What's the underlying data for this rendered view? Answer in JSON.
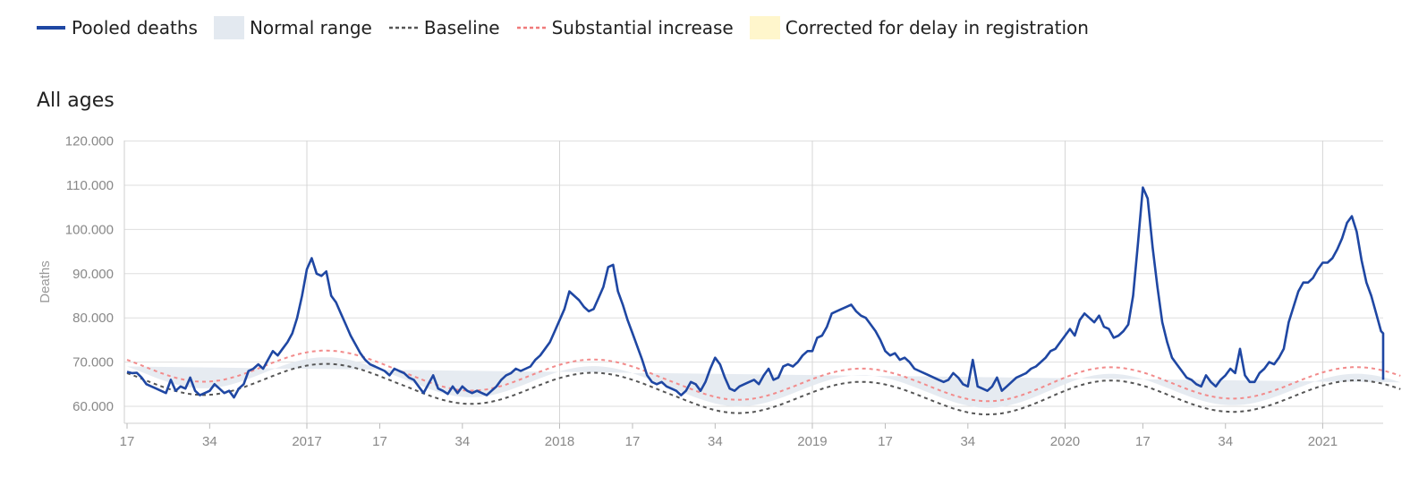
{
  "legend": {
    "items": [
      {
        "label": "Pooled deaths",
        "icon": "solid-line",
        "color": "#1f47a3"
      },
      {
        "label": "Normal range",
        "icon": "band",
        "color": "#e3e9f0"
      },
      {
        "label": "Baseline",
        "icon": "dotted-line",
        "color": "#555555"
      },
      {
        "label": "Substantial increase",
        "icon": "dotted-line",
        "color": "#f07a7a"
      },
      {
        "label": "Corrected for delay in registration",
        "icon": "band",
        "color": "#fff6cc"
      }
    ]
  },
  "panel": {
    "title": "All ages"
  },
  "chart_data": {
    "type": "line",
    "title": "All ages",
    "xlabel": "",
    "ylabel": "Deaths",
    "x_unit": "ISO week",
    "x_start": "2016 week 17",
    "ylim": [
      58000,
      120000
    ],
    "y_ticks": [
      "60.000",
      "70.000",
      "80.000",
      "90.000",
      "100.000",
      "110.000",
      "120.000"
    ],
    "x_ticks": [
      "17",
      "34",
      "2017",
      "17",
      "34",
      "2018",
      "17",
      "34",
      "2019",
      "17",
      "34",
      "2020",
      "17",
      "34",
      "2021"
    ],
    "grid": true,
    "legend_position": "top",
    "series": [
      {
        "name": "Pooled deaths",
        "color": "#1f47a3",
        "values": [
          67800,
          67500,
          67600,
          66500,
          65000,
          64500,
          64000,
          63500,
          63000,
          66000,
          63500,
          64500,
          64000,
          66500,
          63500,
          62500,
          63000,
          63500,
          65000,
          64000,
          63000,
          63500,
          62000,
          64000,
          65000,
          68000,
          68500,
          69500,
          68500,
          70500,
          72500,
          71500,
          73000,
          74500,
          76500,
          80000,
          85000,
          91000,
          93500,
          90000,
          89500,
          90500,
          85000,
          83500,
          81000,
          78500,
          76000,
          74000,
          72000,
          70500,
          69500,
          69000,
          68500,
          68000,
          67000,
          68500,
          68000,
          67500,
          66500,
          66000,
          64500,
          63000,
          65000,
          67000,
          64000,
          63500,
          62800,
          64500,
          63000,
          64500,
          63500,
          63000,
          63500,
          63000,
          62500,
          63500,
          64500,
          66000,
          67000,
          67500,
          68500,
          68000,
          68500,
          69000,
          70500,
          71500,
          73000,
          74500,
          77000,
          79500,
          82000,
          86000,
          85000,
          84000,
          82500,
          81500,
          82000,
          84500,
          87000,
          91500,
          92000,
          86000,
          83000,
          79500,
          76500,
          73500,
          70500,
          67000,
          65500,
          65000,
          65500,
          64500,
          64000,
          63500,
          62500,
          63500,
          65500,
          65000,
          63500,
          65500,
          68500,
          71000,
          69500,
          66500,
          64000,
          63500,
          64500,
          65000,
          65500,
          66000,
          65000,
          67000,
          68500,
          66000,
          66500,
          69000,
          69500,
          69000,
          70000,
          71500,
          72500,
          72500,
          75500,
          76000,
          78000,
          81000,
          81500,
          82000,
          82500,
          83000,
          81500,
          80500,
          80000,
          78500,
          77000,
          75000,
          72500,
          71500,
          72000,
          70500,
          71000,
          70000,
          68500,
          68000,
          67500,
          67000,
          66500,
          66000,
          65500,
          66000,
          67500,
          66500,
          65000,
          64500,
          70500,
          64500,
          64000,
          63500,
          64500,
          66500,
          63500,
          64500,
          65500,
          66500,
          67000,
          67500,
          68500,
          69000,
          70000,
          71000,
          72500,
          73000,
          74500,
          76000,
          77500,
          76000,
          79500,
          81000,
          80000,
          79000,
          80500,
          78000,
          77500,
          75500,
          76000,
          77000,
          78500,
          85000,
          97000,
          109500,
          107000,
          96000,
          87000,
          79000,
          74500,
          71000,
          69500,
          68000,
          66500,
          66000,
          65000,
          64500,
          67000,
          65500,
          64500,
          66000,
          67000,
          68500,
          67500,
          73000,
          67000,
          65500,
          65500,
          67500,
          68500,
          70000,
          69500,
          71000,
          73000,
          79000,
          82500,
          86000,
          88000,
          88000,
          89000,
          91000,
          92500,
          92500,
          93500,
          95500,
          98000,
          101500,
          103000,
          99500,
          93000,
          88000,
          85000,
          81000,
          77000,
          76500,
          75500,
          73500,
          71000,
          66000
        ]
      },
      {
        "name": "Baseline",
        "color": "#555555",
        "values": [
          67500,
          67098,
          66677,
          66243,
          65805,
          65369,
          64942,
          64531,
          64144,
          63787,
          63467,
          63188,
          62957,
          62775,
          62647,
          62575,
          62560,
          62603,
          62701,
          62855,
          63060,
          63313,
          63610,
          63946,
          64315,
          64710,
          65127,
          65558,
          65996,
          66436,
          66869,
          67290,
          67692,
          68068,
          68413,
          68722,
          68989,
          69211,
          69386,
          69510,
          69582,
          69602,
          69569,
          69485,
          69350,
          69167,
          68937,
          68666,
          68355,
          68010,
          67636,
          67236,
          66817,
          66384,
          65943,
          65500,
          65078,
          64656,
          64222,
          63784,
          63348,
          62921,
          62510,
          62123,
          61766,
          61446,
          61167,
          60936,
          60754,
          60626,
          60554,
          60539,
          60582,
          60680,
          60834,
          61039,
          61292,
          61589,
          61925,
          62294,
          62689,
          63106,
          63537,
          63975,
          64415,
          64848,
          65269,
          65671,
          66047,
          66392,
          66701,
          66968,
          67190,
          67365,
          67489,
          67561,
          67581,
          67548,
          67464,
          67329,
          67146,
          66916,
          66645,
          66334,
          65989,
          65615,
          65215,
          64796,
          64363,
          63922,
          63479,
          63048,
          62633,
          62207,
          61777,
          61343,
          60918,
          60507,
          60116,
          59752,
          59422,
          59132,
          58890,
          58699,
          58564,
          58488,
          58471,
          58513,
          58606,
          58755,
          58956,
          59206,
          59500,
          59833,
          60200,
          60594,
          61008,
          61437,
          61873,
          62311,
          62744,
          63165,
          63568,
          63946,
          64295,
          64608,
          64880,
          65107,
          65289,
          65422,
          65504,
          65535,
          65515,
          65444,
          65322,
          65152,
          64935,
          64676,
          64376,
          64041,
          63676,
          63284,
          62873,
          62446,
          62012,
          61571,
          61133,
          60702,
          60285,
          59888,
          59518,
          59182,
          58885,
          58632,
          58430,
          58281,
          58188,
          58155,
          58179,
          58262,
          58404,
          58601,
          58850,
          59148,
          59490,
          59869,
          60281,
          60719,
          61178,
          61649,
          62126,
          62602,
          63069,
          63520,
          63947,
          64344,
          64704,
          65021,
          65291,
          65509,
          65674,
          65782,
          65833,
          65826,
          65762,
          65643,
          65470,
          65248,
          64980,
          64669,
          64322,
          63943,
          63538,
          63114,
          62677,
          62235,
          61794,
          61361,
          60943,
          60545,
          60175,
          59837,
          59537,
          59280,
          59069,
          58909,
          58800,
          58746,
          58747,
          58803,
          58913,
          59075,
          59288,
          59547,
          59849,
          60189,
          60561,
          60959,
          61378,
          61810,
          62250,
          62690,
          63124,
          63545,
          63947,
          64324,
          64670,
          64979,
          65248,
          65472,
          65648,
          65773,
          65846,
          65866,
          65833,
          65749,
          65614,
          65431,
          65201,
          64929,
          64618,
          64272,
          63896
        ]
      }
    ],
    "bands": [
      {
        "name": "Normal range",
        "color": "#e3e9f0"
      },
      {
        "name": "Corrected for delay in registration",
        "color": "#fff6cc"
      }
    ]
  }
}
